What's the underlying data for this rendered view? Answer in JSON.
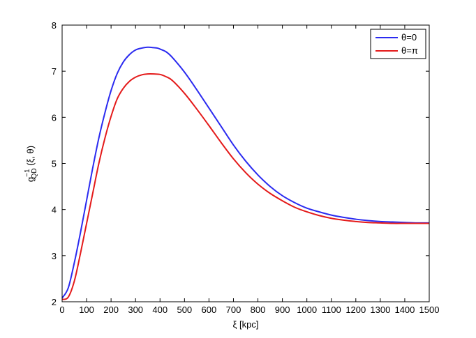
{
  "chart_data": {
    "type": "line",
    "xlabel": "ξ  [kpc]",
    "ylabel": {
      "base": "g",
      "sub": "QD",
      "sup": "−1",
      "args": " (ξ, θ)"
    },
    "xlim": [
      0,
      1500
    ],
    "ylim": [
      2,
      8
    ],
    "xticks": [
      0,
      100,
      200,
      300,
      400,
      500,
      600,
      700,
      800,
      900,
      1000,
      1100,
      1200,
      1300,
      1400,
      1500
    ],
    "yticks": [
      2,
      3,
      4,
      5,
      6,
      7,
      8
    ],
    "grid": false,
    "legend_position": "top-right",
    "series": [
      {
        "name": "θ=0",
        "color": "#2b2bf0",
        "x": [
          0,
          25,
          50,
          75,
          100,
          125,
          150,
          175,
          200,
          225,
          250,
          275,
          300,
          325,
          350,
          375,
          390,
          400,
          425,
          450,
          500,
          550,
          600,
          650,
          700,
          750,
          800,
          850,
          900,
          950,
          1000,
          1050,
          1100,
          1150,
          1200,
          1250,
          1300,
          1350,
          1400,
          1450,
          1500
        ],
        "y": [
          2.08,
          2.3,
          2.85,
          3.5,
          4.2,
          4.9,
          5.55,
          6.1,
          6.58,
          6.95,
          7.2,
          7.36,
          7.46,
          7.5,
          7.52,
          7.51,
          7.5,
          7.48,
          7.42,
          7.3,
          6.98,
          6.6,
          6.2,
          5.8,
          5.4,
          5.05,
          4.75,
          4.5,
          4.3,
          4.15,
          4.03,
          3.95,
          3.88,
          3.83,
          3.79,
          3.76,
          3.74,
          3.73,
          3.72,
          3.71,
          3.71
        ]
      },
      {
        "name": "θ=π",
        "color": "#e41a1a",
        "x": [
          0,
          25,
          50,
          75,
          100,
          125,
          150,
          175,
          200,
          225,
          250,
          275,
          300,
          325,
          350,
          375,
          400,
          425,
          450,
          500,
          550,
          600,
          650,
          700,
          750,
          800,
          850,
          900,
          950,
          1000,
          1050,
          1100,
          1150,
          1200,
          1250,
          1300,
          1350,
          1400,
          1450,
          1500
        ],
        "y": [
          2.05,
          2.1,
          2.45,
          3.05,
          3.7,
          4.35,
          5.0,
          5.55,
          6.02,
          6.4,
          6.63,
          6.78,
          6.87,
          6.92,
          6.94,
          6.94,
          6.93,
          6.88,
          6.8,
          6.52,
          6.18,
          5.82,
          5.45,
          5.1,
          4.8,
          4.55,
          4.35,
          4.19,
          4.05,
          3.95,
          3.87,
          3.81,
          3.77,
          3.74,
          3.72,
          3.71,
          3.7,
          3.7,
          3.7,
          3.7
        ]
      }
    ]
  }
}
